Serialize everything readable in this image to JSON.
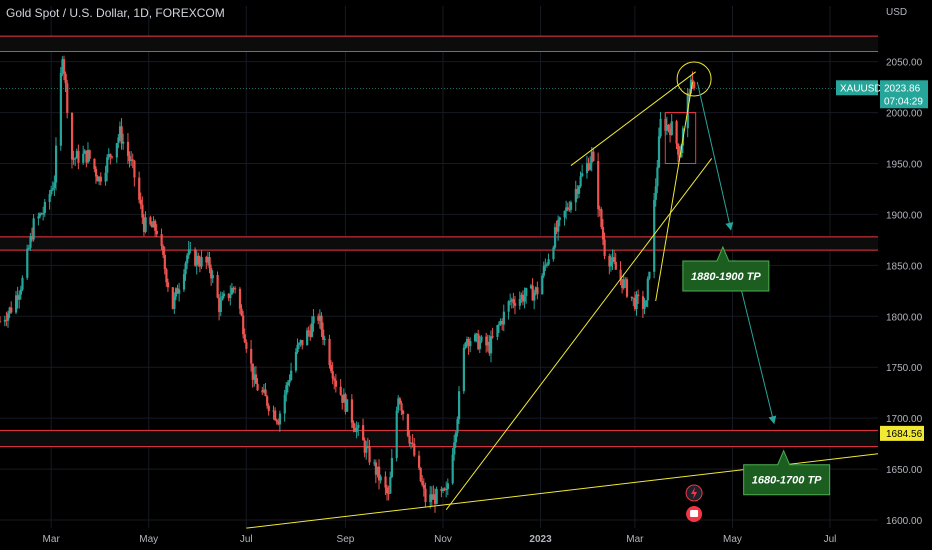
{
  "header": {
    "title": "Gold Spot / U.S. Dollar, 1D, FOREXCOM"
  },
  "chart_data": {
    "type": "candlestick",
    "currency_label": "USD",
    "symbol": "XAUUSD",
    "last_price": "2023.86",
    "countdown": "07:04:29",
    "marker_price": "1684.56",
    "ylim": [
      1600,
      2085
    ],
    "y_ticks": [
      "2050.00",
      "2000.00",
      "1950.00",
      "1900.00",
      "1850.00",
      "1800.00",
      "1750.00",
      "1700.00",
      "1650.00",
      "1600.00"
    ],
    "x_ticks": [
      "Mar",
      "May",
      "Jul",
      "Sep",
      "Nov",
      "2023",
      "Mar",
      "May",
      "Jul"
    ],
    "x_range": [
      "2022-01-28",
      "2023-07-31"
    ],
    "x_tick_dates": [
      "2022-03-01",
      "2022-05-01",
      "2022-07-01",
      "2022-09-01",
      "2022-11-01",
      "2023-01-01",
      "2023-03-01",
      "2023-05-01",
      "2023-07-01"
    ],
    "price_path": [
      [
        "2022-01-28",
        1795
      ],
      [
        "2022-02-04",
        1808
      ],
      [
        "2022-02-11",
        1835
      ],
      [
        "2022-02-18",
        1890
      ],
      [
        "2022-02-25",
        1905
      ],
      [
        "2022-03-03",
        1935
      ],
      [
        "2022-03-08",
        2060
      ],
      [
        "2022-03-14",
        1955
      ],
      [
        "2022-03-24",
        1958
      ],
      [
        "2022-03-31",
        1935
      ],
      [
        "2022-04-13",
        1980
      ],
      [
        "2022-04-21",
        1945
      ],
      [
        "2022-04-28",
        1890
      ],
      [
        "2022-05-06",
        1885
      ],
      [
        "2022-05-16",
        1810
      ],
      [
        "2022-05-25",
        1860
      ],
      [
        "2022-06-08",
        1850
      ],
      [
        "2022-06-14",
        1810
      ],
      [
        "2022-06-24",
        1830
      ],
      [
        "2022-07-06",
        1735
      ],
      [
        "2022-07-21",
        1700
      ],
      [
        "2022-08-01",
        1765
      ],
      [
        "2022-08-15",
        1800
      ],
      [
        "2022-08-26",
        1735
      ],
      [
        "2022-09-15",
        1665
      ],
      [
        "2022-09-28",
        1622
      ],
      [
        "2022-10-04",
        1725
      ],
      [
        "2022-10-21",
        1620
      ],
      [
        "2022-11-03",
        1625
      ],
      [
        "2022-11-10",
        1705
      ],
      [
        "2022-11-15",
        1780
      ],
      [
        "2022-11-30",
        1770
      ],
      [
        "2022-12-13",
        1815
      ],
      [
        "2022-12-30",
        1825
      ],
      [
        "2023-01-10",
        1880
      ],
      [
        "2023-01-26",
        1935
      ],
      [
        "2023-02-02",
        1958
      ],
      [
        "2023-02-10",
        1865
      ],
      [
        "2023-02-28",
        1815
      ],
      [
        "2023-03-08",
        1810
      ],
      [
        "2023-03-17",
        1990
      ],
      [
        "2023-03-24",
        1985
      ],
      [
        "2023-03-29",
        1960
      ],
      [
        "2023-04-04",
        2025
      ],
      [
        "2023-04-07",
        2023.86
      ]
    ],
    "horizontal_zones": [
      {
        "from": 2060,
        "to": 2075,
        "color": "#f23645"
      },
      {
        "from": 1865,
        "to": 1878,
        "color": "#f23645"
      },
      {
        "from": 1672,
        "to": 1688,
        "color": "#f23645"
      }
    ],
    "box": {
      "from_date": "2023-03-20",
      "to_date": "2023-04-08",
      "low": 1950,
      "high": 2000
    },
    "trendlines": [
      {
        "points": [
          [
            "2022-07-01",
            1592
          ],
          [
            "2023-07-31",
            1665
          ]
        ]
      },
      {
        "points": [
          [
            "2022-11-03",
            1610
          ],
          [
            "2023-04-18",
            1955
          ]
        ]
      },
      {
        "points": [
          [
            "2023-01-20",
            1948
          ],
          [
            "2023-04-08",
            2040
          ]
        ]
      },
      {
        "points": [
          [
            "2023-03-14",
            1815
          ],
          [
            "2023-04-06",
            2030
          ]
        ]
      }
    ],
    "circle": {
      "date": "2023-04-07",
      "price": 2033
    },
    "arrows": [
      {
        "from": [
          "2023-04-09",
          2030
        ],
        "to": [
          "2023-04-30",
          1885
        ]
      },
      {
        "from": [
          "2023-05-02",
          1855
        ],
        "to": [
          "2023-05-27",
          1695
        ]
      }
    ],
    "annotations": [
      {
        "text": "1880-1900 TP",
        "tip": [
          "2023-04-25",
          1868
        ]
      },
      {
        "text": "1680-1700 TP",
        "tip": [
          "2023-06-02",
          1668
        ]
      }
    ],
    "up_color": "#26a69a",
    "down_color": "#ef5350"
  }
}
